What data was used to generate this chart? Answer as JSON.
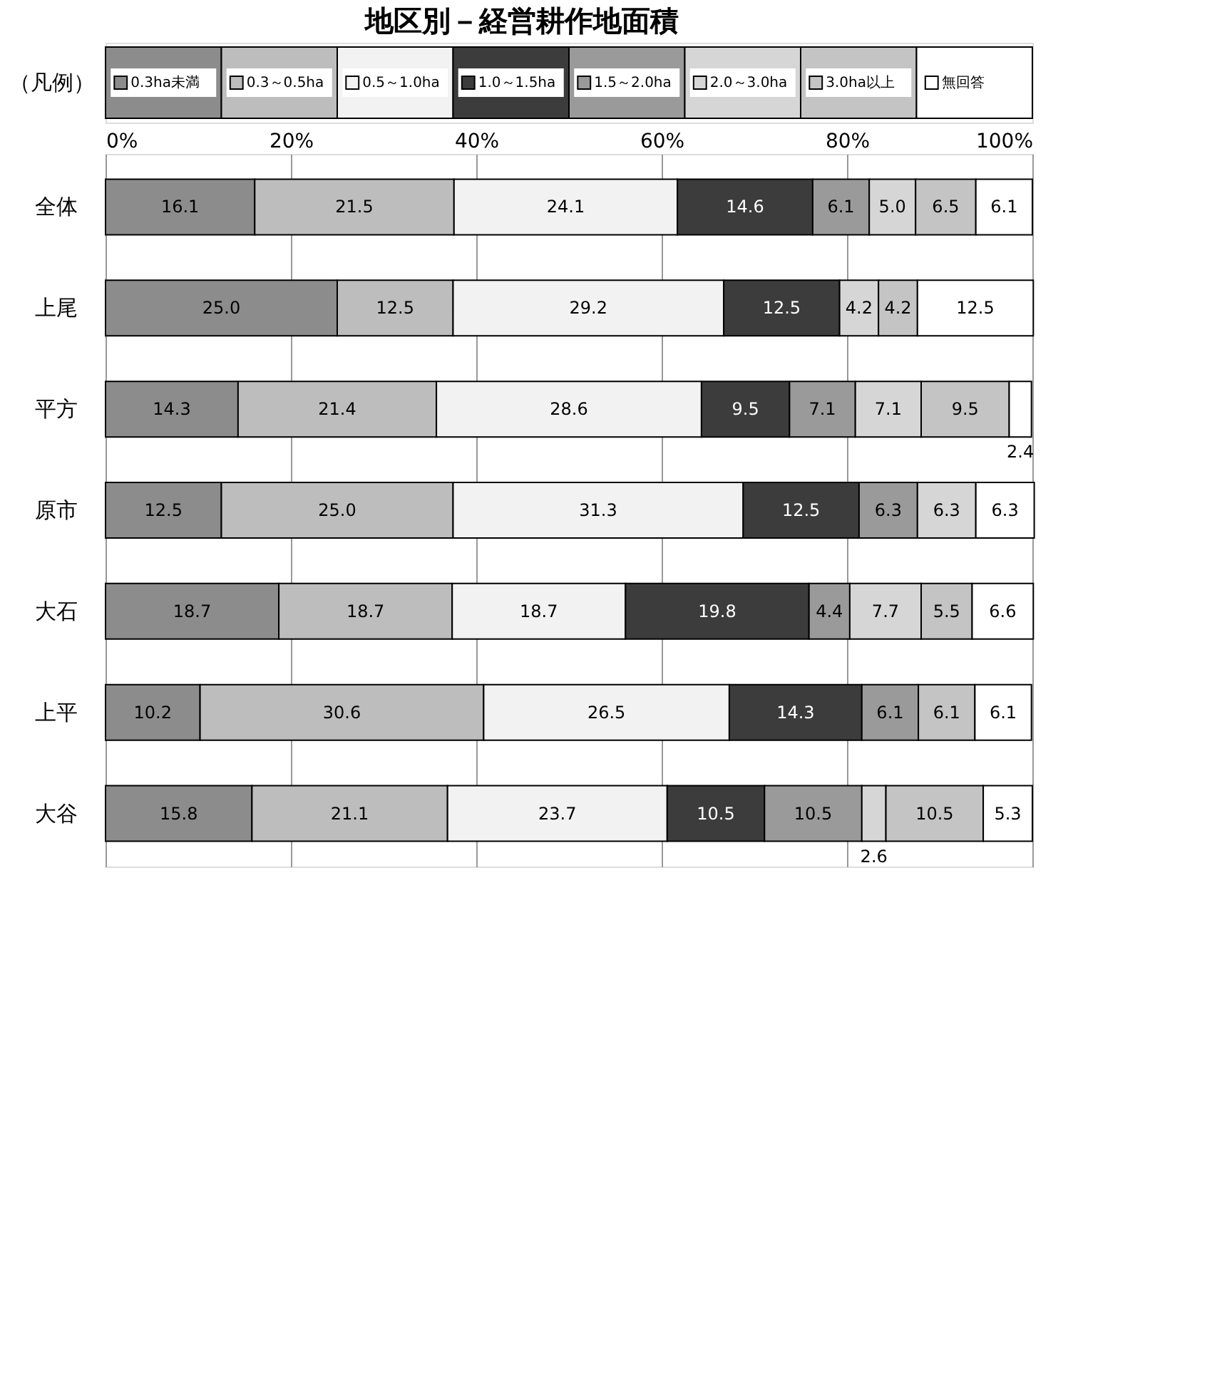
{
  "chart_data": {
    "type": "bar",
    "orientation": "horizontal",
    "stacked": true,
    "title": "地区別－経営耕作地面積",
    "legend_title": "（凡例）",
    "legend": "top",
    "grid": "x",
    "categories": [
      "全体",
      "上尾",
      "平方",
      "原市",
      "大石",
      "上平",
      "大谷"
    ],
    "xlim": [
      0,
      100
    ],
    "xticks": [
      {
        "value": 0,
        "label": "0%"
      },
      {
        "value": 20,
        "label": "20%"
      },
      {
        "value": 40,
        "label": "40%"
      },
      {
        "value": 60,
        "label": "60%"
      },
      {
        "value": 80,
        "label": "80%"
      },
      {
        "value": 100,
        "label": "100%"
      }
    ],
    "series": [
      {
        "name": "0.3ha未満",
        "color": "#8c8c8c",
        "values": [
          16.1,
          25.0,
          14.3,
          12.5,
          18.7,
          10.2,
          15.8
        ],
        "value_labels": [
          "16.1",
          "25.0",
          "14.3",
          "12.5",
          "18.7",
          "10.2",
          "15.8"
        ]
      },
      {
        "name": "0.3～0.5ha",
        "color": "#bdbdbd",
        "values": [
          21.5,
          12.5,
          21.4,
          25.0,
          18.7,
          30.6,
          21.1
        ],
        "value_labels": [
          "21.5",
          "12.5",
          "21.4",
          "25.0",
          "18.7",
          "30.6",
          "21.1"
        ]
      },
      {
        "name": "0.5～1.0ha",
        "color": "#f2f2f2",
        "values": [
          24.1,
          29.2,
          28.6,
          31.3,
          18.7,
          26.5,
          23.7
        ],
        "value_labels": [
          "24.1",
          "29.2",
          "28.6",
          "31.3",
          "18.7",
          "26.5",
          "23.7"
        ]
      },
      {
        "name": "1.0～1.5ha",
        "color": "#3c3c3c",
        "values": [
          14.6,
          12.5,
          9.5,
          12.5,
          19.8,
          14.3,
          10.5
        ],
        "value_labels": [
          "14.6",
          "12.5",
          "9.5",
          "12.5",
          "19.8",
          "14.3",
          "10.5"
        ]
      },
      {
        "name": "1.5～2.0ha",
        "color": "#9a9a9a",
        "values": [
          6.1,
          null,
          7.1,
          6.3,
          4.4,
          6.1,
          10.5
        ],
        "value_labels": [
          "6.1",
          null,
          "7.1",
          "6.3",
          "4.4",
          "6.1",
          "10.5"
        ]
      },
      {
        "name": "2.0～3.0ha",
        "color": "#d6d6d6",
        "values": [
          5.0,
          4.2,
          7.1,
          6.3,
          7.7,
          null,
          2.6
        ],
        "value_labels": [
          "5.0",
          "4.2",
          "7.1",
          "6.3",
          "7.7",
          null,
          "2.6"
        ]
      },
      {
        "name": "3.0ha以上",
        "color": "#c4c4c4",
        "values": [
          6.5,
          4.2,
          9.5,
          null,
          5.5,
          6.1,
          10.5
        ],
        "value_labels": [
          "6.5",
          "4.2",
          "9.5",
          null,
          "5.5",
          "6.1",
          "10.5"
        ]
      },
      {
        "name": "無回答",
        "color": "#ffffff",
        "values": [
          6.1,
          12.5,
          2.4,
          6.3,
          6.6,
          6.1,
          5.3
        ],
        "value_labels": [
          "6.1",
          "12.5",
          "2.4",
          "6.3",
          "6.6",
          "6.1",
          "5.3"
        ]
      }
    ]
  }
}
